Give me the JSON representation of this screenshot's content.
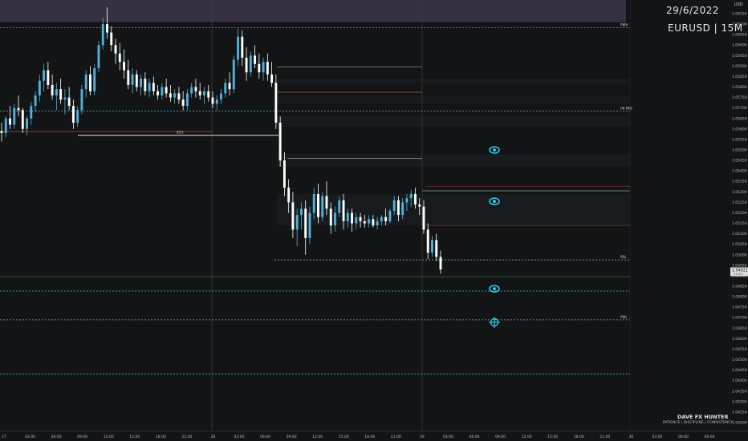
{
  "header": {
    "date": "29/6/2022",
    "symbol_timeframe": "EURUSD | 15M",
    "currency": "USD"
  },
  "branding": {
    "name": "DAVE FX HUNTER",
    "tagline": "PATIENCE  |  DISCIPLINE  |  CONSISTENCY"
  },
  "colors": {
    "background": "#131416",
    "candle_up": "#4fb3d9",
    "candle_down": "#ffffff",
    "zone_top": "#3a3448",
    "zone_band": "#1c1f24",
    "accent_cyan": "#2ec7e6",
    "level_red": "#7a2d33",
    "level_green": "#2f6e4b",
    "level_white": "#cfcfcf"
  },
  "chart_data": {
    "type": "candlestick",
    "ylim": [
      1.04158,
      1.06215
    ],
    "price_axis": {
      "ticks": [
        "1.06150",
        "1.06100",
        "1.06050",
        "1.06000",
        "1.05950",
        "1.05900",
        "1.05850",
        "1.05800",
        "1.05750",
        "1.05700",
        "1.05650",
        "1.05600",
        "1.05550",
        "1.05500",
        "1.05450",
        "1.05400",
        "1.05350",
        "1.05300",
        "1.05250",
        "1.05200",
        "1.05150",
        "1.05100",
        "1.05050",
        "1.05000",
        "1.04950",
        "1.04900",
        "1.04850",
        "1.04800",
        "1.04750",
        "1.04700",
        "1.04650",
        "1.04600",
        "1.04550",
        "1.04500",
        "1.04450",
        "1.04400",
        "1.04350",
        "1.04300",
        "1.04250",
        "1.04200"
      ],
      "current_price": "1.04921",
      "countdown": "11:53"
    },
    "time_axis": {
      "labels": [
        "27",
        "03:00",
        "06:00",
        "09:00",
        "12:00",
        "15:00",
        "18:00",
        "21:00",
        "28",
        "03:00",
        "06:00",
        "09:00",
        "12:00",
        "15:00",
        "18:00",
        "21:00",
        "29",
        "03:00",
        "06:00",
        "09:00",
        "12:00",
        "15:00",
        "18:00",
        "21:00",
        "30",
        "03:00",
        "06:00",
        "09:00"
      ]
    },
    "levels": [
      {
        "label": "PWH",
        "price": 1.06083,
        "style": "dashed",
        "color": "#8a8a8a"
      },
      {
        "label": "UK MID",
        "price": 1.05685,
        "style": "dashed",
        "color": "#2ec7e6"
      },
      {
        "label": "PDL",
        "price": 1.04976,
        "style": "dashed",
        "color": "#9a9a9a"
      },
      {
        "label": "PWL",
        "price": 1.0469,
        "style": "dashed",
        "color": "#9a9a9a"
      },
      {
        "label": "BOS",
        "price": 1.0557,
        "style": "solid",
        "color": "#e0e0e0"
      },
      {
        "label": "",
        "price": 1.04896,
        "style": "solid",
        "color": "#2f6e4b"
      },
      {
        "label": "",
        "price": 1.04827,
        "style": "dashed",
        "color": "#2ec7e6"
      },
      {
        "label": "",
        "price": 1.04432,
        "style": "dashed",
        "color": "#2ec7e6"
      },
      {
        "label": "",
        "price": 1.05327,
        "style": "solid",
        "color": "#7a2d33"
      },
      {
        "label": "",
        "price": 1.0514,
        "style": "solid",
        "color": "#7a2d33"
      }
    ],
    "candles": [
      [
        1.0559,
        1.0563,
        1.0554,
        1.0558
      ],
      [
        1.0558,
        1.0566,
        1.0556,
        1.0565
      ],
      [
        1.0565,
        1.0571,
        1.056,
        1.0562
      ],
      [
        1.0562,
        1.0572,
        1.056,
        1.057
      ],
      [
        1.057,
        1.0576,
        1.0566,
        1.0569
      ],
      [
        1.0569,
        1.057,
        1.0558,
        1.056
      ],
      [
        1.056,
        1.0566,
        1.0557,
        1.0565
      ],
      [
        1.0565,
        1.0573,
        1.0562,
        1.0571
      ],
      [
        1.0571,
        1.0578,
        1.0568,
        1.0576
      ],
      [
        1.0576,
        1.0586,
        1.0573,
        1.0583
      ],
      [
        1.0583,
        1.0591,
        1.0578,
        1.0588
      ],
      [
        1.0588,
        1.0592,
        1.0579,
        1.0581
      ],
      [
        1.0581,
        1.0586,
        1.0574,
        1.0576
      ],
      [
        1.0576,
        1.0582,
        1.0569,
        1.0579
      ],
      [
        1.0579,
        1.0584,
        1.0572,
        1.0574
      ],
      [
        1.0574,
        1.0579,
        1.0567,
        1.0575
      ],
      [
        1.0575,
        1.058,
        1.0569,
        1.0571
      ],
      [
        1.0571,
        1.0574,
        1.056,
        1.0563
      ],
      [
        1.0563,
        1.0571,
        1.0561,
        1.0569
      ],
      [
        1.0569,
        1.0581,
        1.0567,
        1.0579
      ],
      [
        1.0579,
        1.0588,
        1.0575,
        1.0586
      ],
      [
        1.0586,
        1.059,
        1.0576,
        1.0578
      ],
      [
        1.0578,
        1.0591,
        1.0576,
        1.0589
      ],
      [
        1.0589,
        1.0602,
        1.0587,
        1.06
      ],
      [
        1.06,
        1.0613,
        1.0598,
        1.061
      ],
      [
        1.061,
        1.0618,
        1.0603,
        1.0606
      ],
      [
        1.0606,
        1.0609,
        1.0597,
        1.06
      ],
      [
        1.06,
        1.0603,
        1.0591,
        1.0596
      ],
      [
        1.0596,
        1.0601,
        1.0588,
        1.0592
      ],
      [
        1.0592,
        1.0598,
        1.0584,
        1.0588
      ],
      [
        1.0588,
        1.0593,
        1.0579,
        1.0581
      ],
      [
        1.0581,
        1.0589,
        1.0577,
        1.0586
      ],
      [
        1.0586,
        1.0588,
        1.0578,
        1.058
      ],
      [
        1.058,
        1.0586,
        1.0576,
        1.0584
      ],
      [
        1.0584,
        1.0587,
        1.0576,
        1.0578
      ],
      [
        1.0578,
        1.0584,
        1.0575,
        1.0582
      ],
      [
        1.0582,
        1.0585,
        1.0576,
        1.0578
      ],
      [
        1.0578,
        1.0581,
        1.0574,
        1.0576
      ],
      [
        1.0576,
        1.0582,
        1.0574,
        1.058
      ],
      [
        1.058,
        1.0584,
        1.0575,
        1.0577
      ],
      [
        1.0577,
        1.0581,
        1.0573,
        1.0575
      ],
      [
        1.0575,
        1.0579,
        1.0572,
        1.0577
      ],
      [
        1.0577,
        1.058,
        1.0572,
        1.0574
      ],
      [
        1.0574,
        1.0578,
        1.0569,
        1.0571
      ],
      [
        1.0571,
        1.0579,
        1.0569,
        1.0577
      ],
      [
        1.0577,
        1.0582,
        1.0575,
        1.058
      ],
      [
        1.058,
        1.0584,
        1.0575,
        1.0578
      ],
      [
        1.0578,
        1.0582,
        1.0574,
        1.0576
      ],
      [
        1.0576,
        1.058,
        1.0572,
        1.0578
      ],
      [
        1.0578,
        1.0581,
        1.0573,
        1.0575
      ],
      [
        1.0575,
        1.0578,
        1.057,
        1.0572
      ],
      [
        1.0572,
        1.0576,
        1.0569,
        1.0574
      ],
      [
        1.0574,
        1.0579,
        1.0572,
        1.0577
      ],
      [
        1.0577,
        1.0584,
        1.0575,
        1.0582
      ],
      [
        1.0582,
        1.0587,
        1.0576,
        1.0579
      ],
      [
        1.0579,
        1.0595,
        1.0577,
        1.0593
      ],
      [
        1.0593,
        1.0608,
        1.059,
        1.0604
      ],
      [
        1.0604,
        1.0607,
        1.059,
        1.0594
      ],
      [
        1.0594,
        1.0599,
        1.0583,
        1.0587
      ],
      [
        1.0587,
        1.0597,
        1.0585,
        1.0595
      ],
      [
        1.0595,
        1.06,
        1.0589,
        1.0591
      ],
      [
        1.0591,
        1.0596,
        1.0584,
        1.0587
      ],
      [
        1.0587,
        1.0594,
        1.0583,
        1.0592
      ],
      [
        1.0592,
        1.0596,
        1.0583,
        1.0586
      ],
      [
        1.0586,
        1.0592,
        1.058,
        1.0582
      ],
      [
        1.0582,
        1.0586,
        1.056,
        1.0563
      ],
      [
        1.0563,
        1.0566,
        1.0542,
        1.0545
      ],
      [
        1.0545,
        1.0549,
        1.0528,
        1.0532
      ],
      [
        1.0532,
        1.0536,
        1.052,
        1.0525
      ],
      [
        1.0525,
        1.053,
        1.0508,
        1.0512
      ],
      [
        1.0512,
        1.0522,
        1.0504,
        1.0519
      ],
      [
        1.0519,
        1.0525,
        1.0512,
        1.0522
      ],
      [
        1.0522,
        1.0526,
        1.05,
        1.0508
      ],
      [
        1.0508,
        1.0523,
        1.0505,
        1.052
      ],
      [
        1.052,
        1.0532,
        1.0517,
        1.0529
      ],
      [
        1.0529,
        1.0534,
        1.0515,
        1.0518
      ],
      [
        1.0518,
        1.053,
        1.0516,
        1.0528
      ],
      [
        1.0528,
        1.0535,
        1.0519,
        1.0522
      ],
      [
        1.0522,
        1.0525,
        1.051,
        1.0514
      ],
      [
        1.0514,
        1.0523,
        1.0511,
        1.052
      ],
      [
        1.052,
        1.0528,
        1.0518,
        1.0526
      ],
      [
        1.0526,
        1.0529,
        1.0512,
        1.0516
      ],
      [
        1.0516,
        1.0522,
        1.0513,
        1.052
      ],
      [
        1.052,
        1.0522,
        1.0511,
        1.0515
      ],
      [
        1.0515,
        1.052,
        1.0512,
        1.0518
      ],
      [
        1.0518,
        1.052,
        1.0513,
        1.0516
      ],
      [
        1.0516,
        1.0519,
        1.0513,
        1.0515
      ],
      [
        1.0515,
        1.0519,
        1.0513,
        1.0517
      ],
      [
        1.0517,
        1.0519,
        1.0513,
        1.0514
      ],
      [
        1.0514,
        1.0518,
        1.0512,
        1.0516
      ],
      [
        1.0516,
        1.0519,
        1.0514,
        1.0518
      ],
      [
        1.0518,
        1.0522,
        1.0514,
        1.0516
      ],
      [
        1.0516,
        1.0522,
        1.0515,
        1.0521
      ],
      [
        1.0521,
        1.0528,
        1.0519,
        1.0526
      ],
      [
        1.0526,
        1.0528,
        1.0516,
        1.0519
      ],
      [
        1.0519,
        1.0527,
        1.0517,
        1.0525
      ],
      [
        1.0525,
        1.0529,
        1.0521,
        1.0527
      ],
      [
        1.0527,
        1.0531,
        1.0523,
        1.0529
      ],
      [
        1.0529,
        1.0532,
        1.0522,
        1.0524
      ],
      [
        1.0524,
        1.0527,
        1.0519,
        1.0523
      ],
      [
        1.0523,
        1.0526,
        1.051,
        1.0512
      ],
      [
        1.0512,
        1.0515,
        1.0498,
        1.0501
      ],
      [
        1.0501,
        1.0509,
        1.0499,
        1.0507
      ],
      [
        1.0507,
        1.051,
        1.0497,
        1.0499
      ],
      [
        1.0499,
        1.0502,
        1.0491,
        1.0493
      ]
    ]
  },
  "zones": [
    {
      "name": "top-zone",
      "y1": 1.06215,
      "y2": 1.0611,
      "color": "#3a3448"
    },
    {
      "name": "band-1",
      "y1": 1.0584,
      "y2": 1.0582,
      "color": "#1c1f24"
    },
    {
      "name": "band-2",
      "y1": 1.0576,
      "y2": 1.0572,
      "color": "#1c1f24"
    },
    {
      "name": "band-3",
      "y1": 1.0566,
      "y2": 1.0561,
      "color": "#1c1f24"
    },
    {
      "name": "band-4",
      "y1": 1.0548,
      "y2": 1.0542,
      "color": "#1c1f24"
    },
    {
      "name": "band-5",
      "y1": 1.0529,
      "y2": 1.0514,
      "color": "#1c1f24"
    }
  ],
  "markers": [
    {
      "name": "eye-icon",
      "price": 1.055,
      "icon": "eye-icon"
    },
    {
      "name": "eye-icon",
      "price": 1.05255,
      "icon": "eye-icon"
    },
    {
      "name": "eye-icon",
      "price": 1.04838,
      "icon": "eye-icon"
    },
    {
      "name": "crosshair-target-icon",
      "price": 1.04678,
      "icon": "crosshair-target-icon"
    }
  ]
}
